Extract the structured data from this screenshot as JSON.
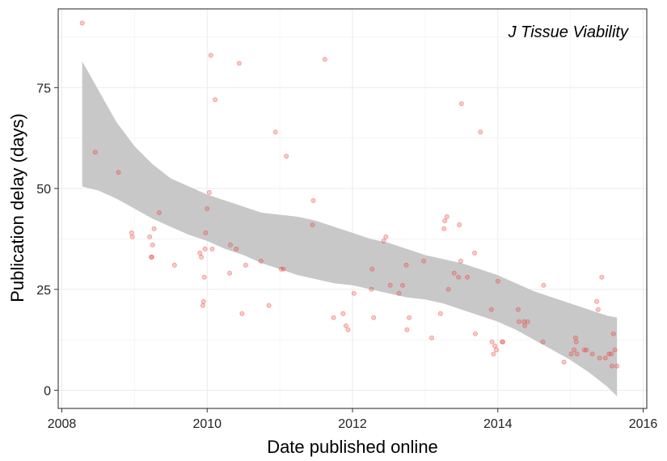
{
  "chart_data": {
    "type": "scatter",
    "annotation": "J Tissue Viability",
    "xlabel": "Date published online",
    "ylabel": "Publication delay (days)",
    "xlim": [
      2007.95,
      2016.05
    ],
    "ylim": [
      -4.5,
      94.5
    ],
    "x_ticks": [
      2008,
      2010,
      2012,
      2014,
      2016
    ],
    "x_tick_labels": [
      "2008",
      "2010",
      "2012",
      "2014",
      "2016"
    ],
    "y_ticks": [
      0,
      25,
      50,
      75
    ],
    "y_tick_labels": [
      "0",
      "25",
      "50",
      "75"
    ],
    "grid": true,
    "colors": {
      "points": "#e8413a",
      "band": "#c8c8c8",
      "grid": "#ebebeb",
      "frame": "#555555"
    },
    "points": [
      [
        2008.28,
        91
      ],
      [
        2008.46,
        59
      ],
      [
        2008.78,
        54
      ],
      [
        2008.96,
        39
      ],
      [
        2008.97,
        38
      ],
      [
        2009.23,
        33
      ],
      [
        2009.24,
        33
      ],
      [
        2009.25,
        36
      ],
      [
        2009.21,
        38
      ],
      [
        2009.27,
        40
      ],
      [
        2009.34,
        44
      ],
      [
        2009.55,
        31
      ],
      [
        2009.9,
        34
      ],
      [
        2009.92,
        33
      ],
      [
        2009.94,
        21
      ],
      [
        2009.95,
        22
      ],
      [
        2009.96,
        28
      ],
      [
        2009.97,
        35
      ],
      [
        2009.98,
        39
      ],
      [
        2010.0,
        45
      ],
      [
        2010.03,
        49
      ],
      [
        2010.05,
        83
      ],
      [
        2010.07,
        35
      ],
      [
        2010.11,
        72
      ],
      [
        2010.31,
        29
      ],
      [
        2010.32,
        36
      ],
      [
        2010.4,
        35
      ],
      [
        2010.44,
        81
      ],
      [
        2010.48,
        19
      ],
      [
        2010.53,
        31
      ],
      [
        2010.74,
        32
      ],
      [
        2010.85,
        21
      ],
      [
        2010.94,
        64
      ],
      [
        2011.02,
        30
      ],
      [
        2011.05,
        30
      ],
      [
        2011.09,
        58
      ],
      [
        2011.45,
        41
      ],
      [
        2011.46,
        47
      ],
      [
        2011.62,
        82
      ],
      [
        2011.74,
        18
      ],
      [
        2011.87,
        19
      ],
      [
        2011.91,
        16
      ],
      [
        2011.94,
        15
      ],
      [
        2012.02,
        24
      ],
      [
        2012.26,
        25
      ],
      [
        2012.27,
        30
      ],
      [
        2012.29,
        18
      ],
      [
        2012.43,
        37
      ],
      [
        2012.46,
        38
      ],
      [
        2012.52,
        26
      ],
      [
        2012.64,
        24
      ],
      [
        2012.69,
        26
      ],
      [
        2012.74,
        31
      ],
      [
        2012.75,
        15
      ],
      [
        2012.78,
        18
      ],
      [
        2012.98,
        32
      ],
      [
        2013.09,
        13
      ],
      [
        2013.21,
        19
      ],
      [
        2013.26,
        40
      ],
      [
        2013.27,
        42
      ],
      [
        2013.3,
        43
      ],
      [
        2013.32,
        25
      ],
      [
        2013.4,
        29
      ],
      [
        2013.46,
        28
      ],
      [
        2013.47,
        41
      ],
      [
        2013.49,
        32
      ],
      [
        2013.5,
        71
      ],
      [
        2013.58,
        28
      ],
      [
        2013.68,
        34
      ],
      [
        2013.69,
        14
      ],
      [
        2013.76,
        64
      ],
      [
        2013.91,
        20
      ],
      [
        2013.92,
        12
      ],
      [
        2013.94,
        9
      ],
      [
        2013.96,
        11
      ],
      [
        2013.98,
        10
      ],
      [
        2014.0,
        27
      ],
      [
        2014.06,
        12
      ],
      [
        2014.07,
        12
      ],
      [
        2014.28,
        20
      ],
      [
        2014.29,
        17
      ],
      [
        2014.36,
        17
      ],
      [
        2014.37,
        16
      ],
      [
        2014.41,
        17
      ],
      [
        2014.62,
        12
      ],
      [
        2014.63,
        26
      ],
      [
        2014.91,
        7
      ],
      [
        2015.01,
        9
      ],
      [
        2015.05,
        10
      ],
      [
        2015.07,
        13
      ],
      [
        2015.08,
        12
      ],
      [
        2015.09,
        9
      ],
      [
        2015.19,
        10
      ],
      [
        2015.22,
        10
      ],
      [
        2015.3,
        9
      ],
      [
        2015.36,
        22
      ],
      [
        2015.38,
        20
      ],
      [
        2015.4,
        8
      ],
      [
        2015.43,
        28
      ],
      [
        2015.48,
        8
      ],
      [
        2015.53,
        9
      ],
      [
        2015.56,
        9
      ],
      [
        2015.57,
        6
      ],
      [
        2015.59,
        14
      ],
      [
        2015.61,
        10
      ],
      [
        2015.64,
        6
      ]
    ],
    "confidence_band": {
      "x": [
        2008.28,
        2008.5,
        2008.75,
        2009.0,
        2009.25,
        2009.5,
        2009.75,
        2010.0,
        2010.25,
        2010.5,
        2010.75,
        2011.0,
        2011.25,
        2011.5,
        2011.75,
        2012.0,
        2012.25,
        2012.5,
        2012.75,
        2013.0,
        2013.25,
        2013.5,
        2013.75,
        2014.0,
        2014.25,
        2014.5,
        2014.75,
        2015.0,
        2015.25,
        2015.5,
        2015.64
      ],
      "upper": [
        81.5,
        74.5,
        66.5,
        60.5,
        56,
        52.5,
        50.5,
        48.5,
        47,
        45.5,
        44,
        43.5,
        43,
        42,
        40.5,
        39,
        37.5,
        36.5,
        35,
        33.5,
        32.5,
        31.5,
        30,
        28.5,
        26.5,
        24.5,
        23,
        21.5,
        20,
        18.5,
        18
      ],
      "lower": [
        50.5,
        49.5,
        47.5,
        45,
        42.5,
        40.5,
        38.5,
        37,
        35,
        33.5,
        31.5,
        30,
        28.5,
        27.5,
        26.5,
        26,
        25,
        24,
        23,
        22.5,
        21.5,
        20,
        18.5,
        17,
        15,
        12.5,
        10,
        7.5,
        4.5,
        1,
        -1.5
      ]
    }
  }
}
